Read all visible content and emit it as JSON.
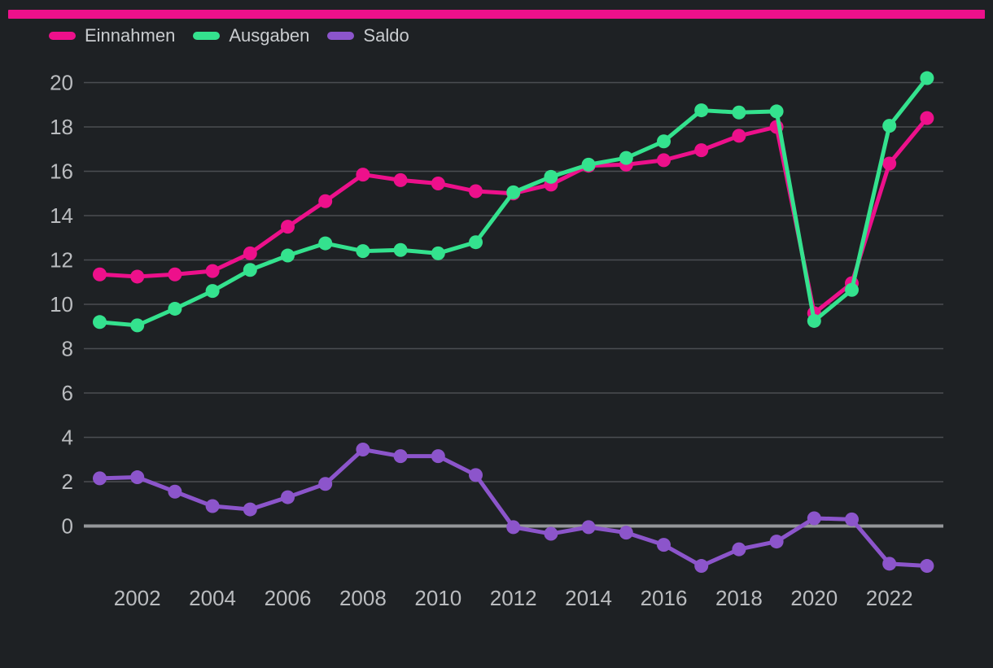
{
  "page": {
    "background_color": "#1e2124",
    "top_bar_color": "#ed108b"
  },
  "legend": {
    "items": [
      {
        "label": "Einnahmen",
        "color": "#ed108b"
      },
      {
        "label": "Ausgaben",
        "color": "#34e28e"
      },
      {
        "label": "Saldo",
        "color": "#8c55cb"
      }
    ]
  },
  "axes": {
    "x_tick_labels": [
      "2002",
      "2004",
      "2006",
      "2008",
      "2010",
      "2012",
      "2014",
      "2016",
      "2018",
      "2020",
      "2022"
    ],
    "y_tick_labels": [
      "0",
      "2",
      "4",
      "6",
      "8",
      "10",
      "12",
      "14",
      "16",
      "18",
      "20"
    ]
  },
  "chart_data": {
    "type": "line",
    "title": "",
    "xlabel": "",
    "ylabel": "",
    "x": [
      2001,
      2002,
      2003,
      2004,
      2005,
      2006,
      2007,
      2008,
      2009,
      2010,
      2011,
      2012,
      2013,
      2014,
      2015,
      2016,
      2017,
      2018,
      2019,
      2020,
      2021,
      2022,
      2023
    ],
    "series": [
      {
        "name": "Einnahmen",
        "color": "#ed108b",
        "values": [
          11.35,
          11.25,
          11.35,
          11.5,
          12.3,
          13.5,
          14.65,
          15.85,
          15.6,
          15.45,
          15.1,
          15.0,
          15.4,
          16.25,
          16.3,
          16.5,
          16.95,
          17.6,
          18.0,
          9.6,
          10.95,
          16.35,
          18.4
        ]
      },
      {
        "name": "Ausgaben",
        "color": "#34e28e",
        "values": [
          9.2,
          9.05,
          9.8,
          10.6,
          11.55,
          12.2,
          12.75,
          12.4,
          12.45,
          12.3,
          12.8,
          15.05,
          15.75,
          16.3,
          16.6,
          17.35,
          18.75,
          18.65,
          18.7,
          9.25,
          10.65,
          18.05,
          20.2
        ]
      },
      {
        "name": "Saldo",
        "color": "#8c55cb",
        "values": [
          2.15,
          2.2,
          1.55,
          0.9,
          0.75,
          1.3,
          1.9,
          3.45,
          3.15,
          3.15,
          2.3,
          -0.05,
          -0.35,
          -0.05,
          -0.3,
          -0.85,
          -1.8,
          -1.05,
          -0.7,
          0.35,
          0.3,
          -1.7,
          -1.8
        ]
      }
    ],
    "xticks": [
      2002,
      2004,
      2006,
      2008,
      2010,
      2012,
      2014,
      2016,
      2018,
      2020,
      2022
    ],
    "yticks": [
      0,
      2,
      4,
      6,
      8,
      10,
      12,
      14,
      16,
      18,
      20
    ],
    "xlim": [
      2000.6,
      2023.45
    ],
    "ylim": [
      -2.2,
      20.3
    ],
    "grid": "horizontal",
    "zero_line": true,
    "legend_position": "top-left",
    "style": {
      "gridline_color": "#4b4e52",
      "zero_line_color": "#95979a",
      "tick_text_color": "#babcbf",
      "line_width": 5,
      "marker_radius": 8.5
    }
  }
}
